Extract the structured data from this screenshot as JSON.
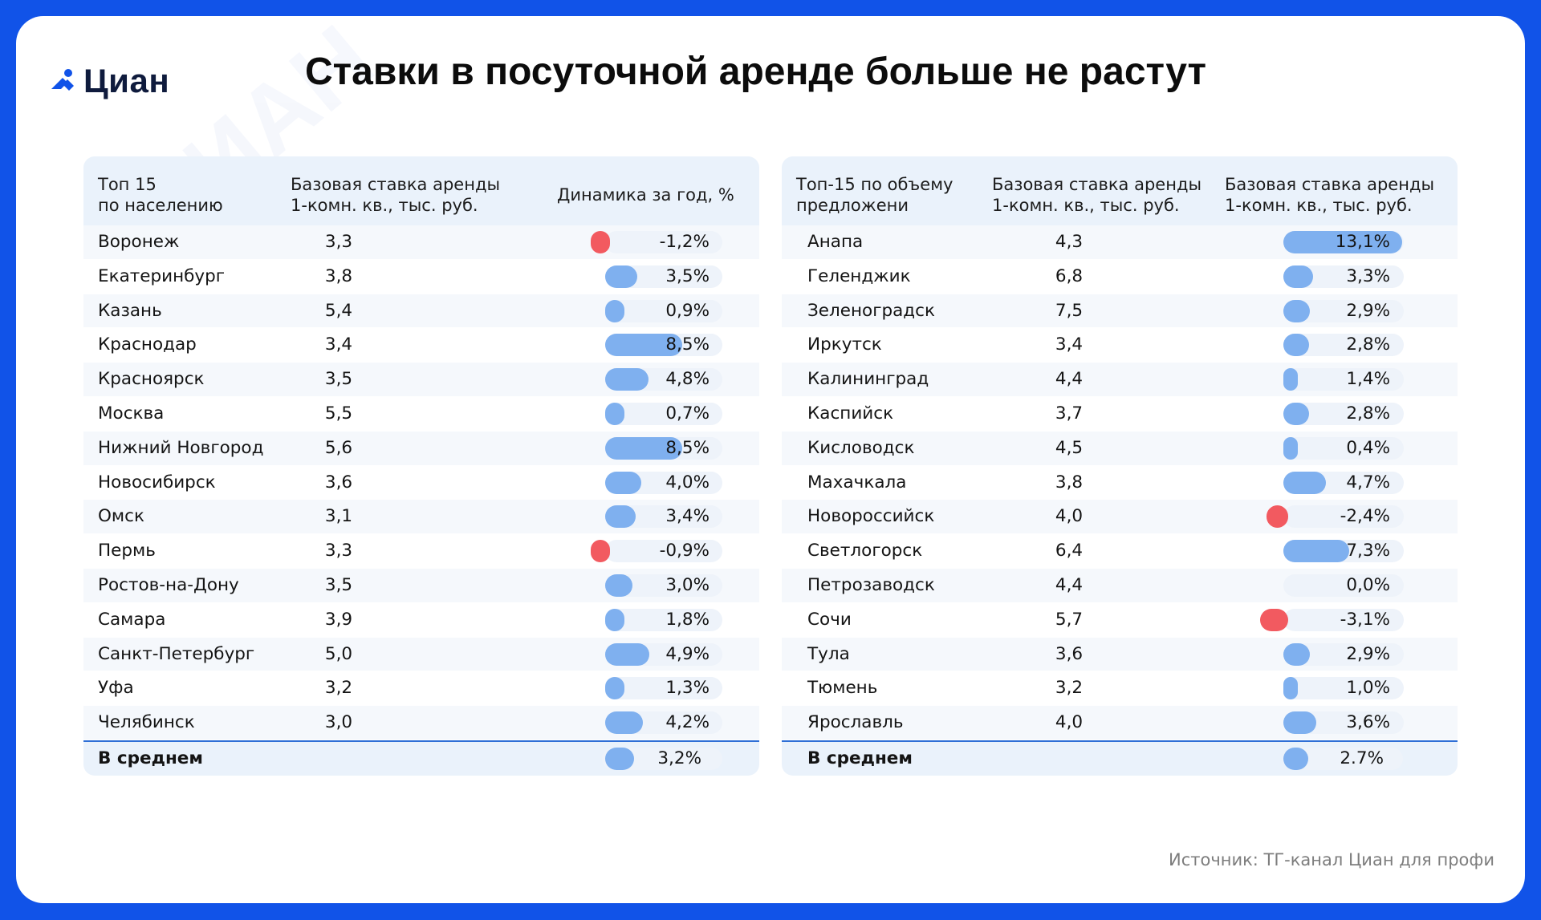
{
  "brand": {
    "logo_text": "Циан",
    "accent": "#1153e8",
    "bar_color": "#7fb0ef",
    "negative_color": "#f25a60"
  },
  "header": {
    "title": "Ставки в посуточной аренде больше не растут"
  },
  "left": {
    "col1": "Топ 15\nпо населению",
    "col2": "Базовая ставка аренды\n1-комн. кв., тыс. руб.",
    "col3": "Динамика за год, %",
    "avg_label": "В среднем",
    "avg_pct": "3,2%"
  },
  "right": {
    "col1": "Топ-15 по объему\nпредложени",
    "col2": "Базовая ставка аренды\n1-комн. кв., тыс. руб.",
    "col3": "Базовая ставка аренды\n1-комн. кв., тыс. руб.",
    "avg_label": "В среднем",
    "avg_pct": "2.7%"
  },
  "footer": {
    "source": "Источник: ТГ-канал Циан для профи"
  },
  "chart_data": [
    {
      "type": "table",
      "columns": [
        "Топ 15 по населению",
        "Базовая ставка аренды 1-комн. кв., тыс. руб.",
        "Динамика за год, %"
      ],
      "rows": [
        {
          "city": "Воронеж",
          "rate": "3,3",
          "change": -1.2,
          "change_label": "-1,2%"
        },
        {
          "city": "Екатеринбург",
          "rate": "3,8",
          "change": 3.5,
          "change_label": "3,5%"
        },
        {
          "city": "Казань",
          "rate": "5,4",
          "change": 0.9,
          "change_label": "0,9%"
        },
        {
          "city": "Краснодар",
          "rate": "3,4",
          "change": 8.5,
          "change_label": "8,5%"
        },
        {
          "city": "Красноярск",
          "rate": "3,5",
          "change": 4.8,
          "change_label": "4,8%"
        },
        {
          "city": "Москва",
          "rate": "5,5",
          "change": 0.7,
          "change_label": "0,7%"
        },
        {
          "city": "Нижний Новгород",
          "rate": "5,6",
          "change": 8.5,
          "change_label": "8,5%"
        },
        {
          "city": "Новосибирск",
          "rate": "3,6",
          "change": 4.0,
          "change_label": "4,0%"
        },
        {
          "city": "Омск",
          "rate": "3,1",
          "change": 3.4,
          "change_label": "3,4%"
        },
        {
          "city": "Пермь",
          "rate": "3,3",
          "change": -0.9,
          "change_label": "-0,9%"
        },
        {
          "city": "Ростов-на-Дону",
          "rate": "3,5",
          "change": 3.0,
          "change_label": "3,0%"
        },
        {
          "city": "Самара",
          "rate": "3,9",
          "change": 1.8,
          "change_label": "1,8%"
        },
        {
          "city": "Санкт-Петербург",
          "rate": "5,0",
          "change": 4.9,
          "change_label": "4,9%"
        },
        {
          "city": "Уфа",
          "rate": "3,2",
          "change": 1.3,
          "change_label": "1,3%"
        },
        {
          "city": "Челябинск",
          "rate": "3,0",
          "change": 4.2,
          "change_label": "4,2%"
        }
      ],
      "average": {
        "change": 3.2,
        "change_label": "3,2%"
      },
      "max_abs": 8.5
    },
    {
      "type": "table",
      "columns": [
        "Топ-15 по объему предложени",
        "Базовая ставка аренды 1-комн. кв., тыс. руб.",
        "Базовая ставка аренды 1-комн. кв., тыс. руб."
      ],
      "rows": [
        {
          "city": "Анапа",
          "rate": "4,3",
          "change": 13.1,
          "change_label": "13,1%"
        },
        {
          "city": "Геленджик",
          "rate": "6,8",
          "change": 3.3,
          "change_label": "3,3%"
        },
        {
          "city": "Зеленоградск",
          "rate": "7,5",
          "change": 2.9,
          "change_label": "2,9%"
        },
        {
          "city": "Иркутск",
          "rate": "3,4",
          "change": 2.8,
          "change_label": "2,8%"
        },
        {
          "city": "Калининград",
          "rate": "4,4",
          "change": 1.4,
          "change_label": "1,4%"
        },
        {
          "city": "Каспийск",
          "rate": "3,7",
          "change": 2.8,
          "change_label": "2,8%"
        },
        {
          "city": "Кисловодск",
          "rate": "4,5",
          "change": 0.4,
          "change_label": "0,4%"
        },
        {
          "city": "Махачкала",
          "rate": "3,8",
          "change": 4.7,
          "change_label": "4,7%"
        },
        {
          "city": "Новороссийск",
          "rate": "4,0",
          "change": -2.4,
          "change_label": "-2,4%"
        },
        {
          "city": "Светлогорск",
          "rate": "6,4",
          "change": 7.3,
          "change_label": "7,3%"
        },
        {
          "city": "Петрозаводск",
          "rate": "4,4",
          "change": 0.0,
          "change_label": "0,0%"
        },
        {
          "city": "Сочи",
          "rate": "5,7",
          "change": -3.1,
          "change_label": "-3,1%"
        },
        {
          "city": "Тула",
          "rate": "3,6",
          "change": 2.9,
          "change_label": "2,9%"
        },
        {
          "city": "Тюмень",
          "rate": "3,2",
          "change": 1.0,
          "change_label": "1,0%"
        },
        {
          "city": "Ярославль",
          "rate": "4,0",
          "change": 3.6,
          "change_label": "3,6%"
        }
      ],
      "average": {
        "change": 2.7,
        "change_label": "2.7%"
      },
      "max_abs": 13.1
    }
  ]
}
